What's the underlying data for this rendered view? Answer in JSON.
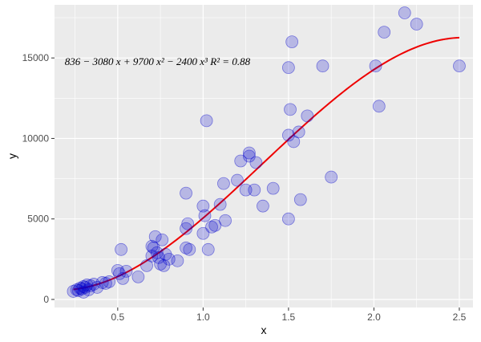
{
  "chart_data": {
    "type": "scatter",
    "title": "",
    "xlabel": "x",
    "ylabel": "y",
    "xlim": [
      0.13,
      2.58
    ],
    "ylim": [
      -500,
      18300
    ],
    "x_ticks": [
      0.5,
      1.0,
      1.5,
      2.0,
      2.5
    ],
    "x_tick_labels": [
      "0.5",
      "1.0",
      "1.5",
      "2.0",
      "2.5"
    ],
    "x_minor_ticks": [
      0.25,
      0.75,
      1.25,
      1.75,
      2.25
    ],
    "y_ticks": [
      0,
      5000,
      10000,
      15000
    ],
    "y_tick_labels": [
      "0",
      "5000",
      "10000",
      "15000"
    ],
    "y_minor_ticks": [
      2500,
      7500,
      12500,
      17500
    ],
    "grid": true,
    "legend": "none",
    "annotation": "836 − 3080 x + 9700 x² − 2400 x³     R² = 0.88",
    "annotation_anchor": {
      "x": 0.19,
      "y": 14800
    },
    "point_color": "#0000cd",
    "point_opacity": 0.22,
    "line_color": "#ee0000",
    "panel_bg": "#ebebeb",
    "grid_color": "#ffffff",
    "fit": {
      "coefficients": [
        836,
        -3080,
        9700,
        -2400
      ],
      "x_range": [
        0.24,
        2.5
      ]
    },
    "points": [
      {
        "x": 0.24,
        "y": 500
      },
      {
        "x": 0.26,
        "y": 600
      },
      {
        "x": 0.27,
        "y": 550
      },
      {
        "x": 0.28,
        "y": 700
      },
      {
        "x": 0.29,
        "y": 650
      },
      {
        "x": 0.3,
        "y": 800
      },
      {
        "x": 0.3,
        "y": 450
      },
      {
        "x": 0.31,
        "y": 750
      },
      {
        "x": 0.32,
        "y": 900
      },
      {
        "x": 0.33,
        "y": 600
      },
      {
        "x": 0.34,
        "y": 850
      },
      {
        "x": 0.36,
        "y": 950
      },
      {
        "x": 0.38,
        "y": 750
      },
      {
        "x": 0.41,
        "y": 1050
      },
      {
        "x": 0.43,
        "y": 1000
      },
      {
        "x": 0.45,
        "y": 1100
      },
      {
        "x": 0.5,
        "y": 1800
      },
      {
        "x": 0.51,
        "y": 1600
      },
      {
        "x": 0.52,
        "y": 3100
      },
      {
        "x": 0.53,
        "y": 1300
      },
      {
        "x": 0.55,
        "y": 1750
      },
      {
        "x": 0.62,
        "y": 1400
      },
      {
        "x": 0.67,
        "y": 2100
      },
      {
        "x": 0.7,
        "y": 3300
      },
      {
        "x": 0.7,
        "y": 2700
      },
      {
        "x": 0.71,
        "y": 3200
      },
      {
        "x": 0.72,
        "y": 3900
      },
      {
        "x": 0.73,
        "y": 2900
      },
      {
        "x": 0.74,
        "y": 2600
      },
      {
        "x": 0.75,
        "y": 2200
      },
      {
        "x": 0.76,
        "y": 3700
      },
      {
        "x": 0.77,
        "y": 2100
      },
      {
        "x": 0.78,
        "y": 2800
      },
      {
        "x": 0.8,
        "y": 2500
      },
      {
        "x": 0.85,
        "y": 2400
      },
      {
        "x": 0.9,
        "y": 4400
      },
      {
        "x": 0.9,
        "y": 6600
      },
      {
        "x": 0.9,
        "y": 3200
      },
      {
        "x": 0.91,
        "y": 4700
      },
      {
        "x": 0.92,
        "y": 3100
      },
      {
        "x": 1.0,
        "y": 5800
      },
      {
        "x": 1.0,
        "y": 4100
      },
      {
        "x": 1.01,
        "y": 5200
      },
      {
        "x": 1.02,
        "y": 11100
      },
      {
        "x": 1.03,
        "y": 3100
      },
      {
        "x": 1.05,
        "y": 4500
      },
      {
        "x": 1.07,
        "y": 4600
      },
      {
        "x": 1.1,
        "y": 5900
      },
      {
        "x": 1.12,
        "y": 7200
      },
      {
        "x": 1.13,
        "y": 4900
      },
      {
        "x": 1.2,
        "y": 7400
      },
      {
        "x": 1.22,
        "y": 8600
      },
      {
        "x": 1.25,
        "y": 6800
      },
      {
        "x": 1.27,
        "y": 8900
      },
      {
        "x": 1.27,
        "y": 9100
      },
      {
        "x": 1.3,
        "y": 6800
      },
      {
        "x": 1.31,
        "y": 8500
      },
      {
        "x": 1.35,
        "y": 5800
      },
      {
        "x": 1.41,
        "y": 6900
      },
      {
        "x": 1.5,
        "y": 14400
      },
      {
        "x": 1.5,
        "y": 10200
      },
      {
        "x": 1.5,
        "y": 5000
      },
      {
        "x": 1.51,
        "y": 11800
      },
      {
        "x": 1.52,
        "y": 16000
      },
      {
        "x": 1.53,
        "y": 9800
      },
      {
        "x": 1.56,
        "y": 10400
      },
      {
        "x": 1.57,
        "y": 6200
      },
      {
        "x": 1.61,
        "y": 11400
      },
      {
        "x": 1.7,
        "y": 14500
      },
      {
        "x": 1.75,
        "y": 7600
      },
      {
        "x": 2.01,
        "y": 14500
      },
      {
        "x": 2.03,
        "y": 12000
      },
      {
        "x": 2.06,
        "y": 16600
      },
      {
        "x": 2.18,
        "y": 17800
      },
      {
        "x": 2.25,
        "y": 17100
      },
      {
        "x": 2.5,
        "y": 14500
      }
    ]
  }
}
